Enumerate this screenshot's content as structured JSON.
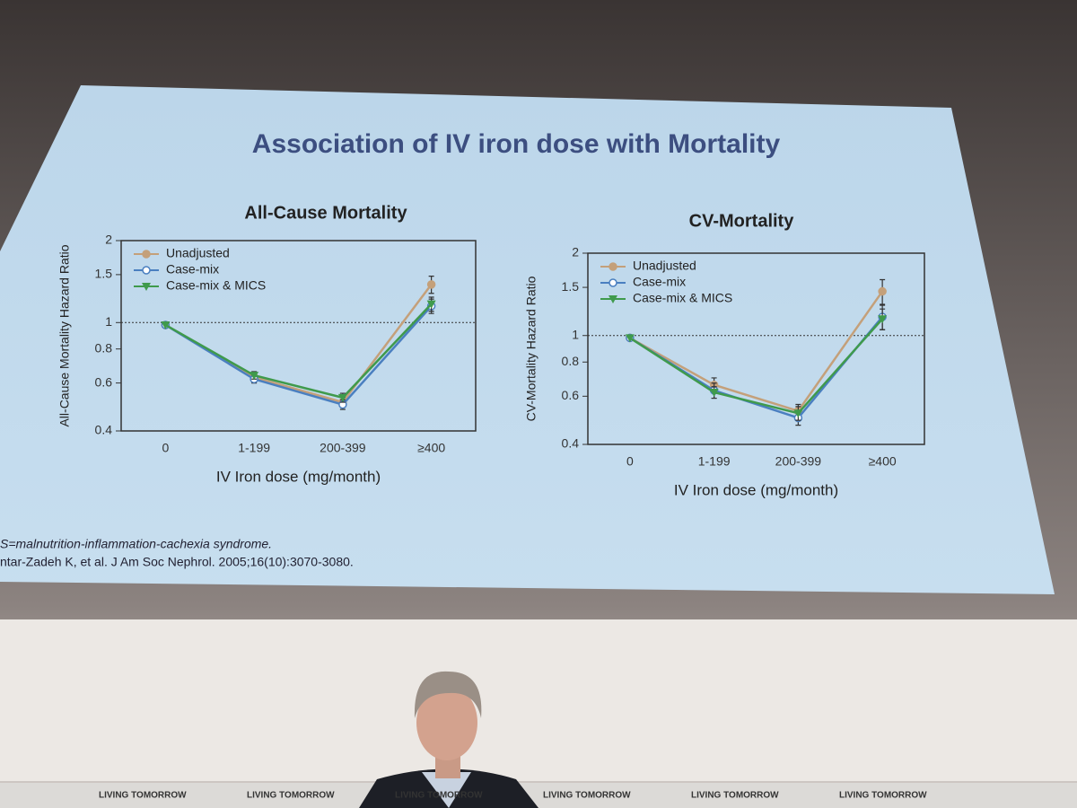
{
  "slide_title": "Association of IV iron dose with Mortality",
  "footnotes": [
    "S=malnutrition-inflammation-cachexia syndrome.",
    "ntar-Zadeh K, et al. J Am Soc Nephrol. 2005;16(10):3070-3080."
  ],
  "banners": [
    "LIVING TOMORROW",
    "LIVING TOMORROW",
    "LIVING TOMORROW",
    "LIVING TOMORROW",
    "LIVING TOMORROW",
    "LIVING TOMORROW"
  ],
  "chart_data": [
    {
      "type": "line",
      "title": "All-Cause Mortality",
      "x_label": "IV Iron dose (mg/month)",
      "y_label": "All-Cause Mortality Hazard Ratio",
      "categories": [
        "0",
        "1-199",
        "200-399",
        "≥400"
      ],
      "log_scale": true,
      "ylim": [
        0.4,
        2
      ],
      "yticks": [
        0.4,
        0.6,
        0.8,
        1,
        1.5,
        2
      ],
      "reference_line": 1,
      "legend": "upper left",
      "series": [
        {
          "name": "Unadjusted",
          "color": "#c4a07a",
          "marker": "circle",
          "values": [
            0.98,
            0.63,
            0.51,
            1.38
          ],
          "errors": [
            null,
            0.02,
            0.02,
            0.1
          ]
        },
        {
          "name": "Case-mix",
          "color": "#4a7fc0",
          "marker": "open-circle",
          "values": [
            0.98,
            0.62,
            0.5,
            1.15
          ],
          "errors": [
            null,
            0.02,
            0.02,
            0.07
          ]
        },
        {
          "name": "Case-mix & MICS",
          "color": "#3f9a4c",
          "marker": "triangle-down",
          "values": [
            0.98,
            0.64,
            0.53,
            1.17
          ],
          "errors": [
            null,
            0.02,
            0.02,
            0.07
          ]
        }
      ]
    },
    {
      "type": "line",
      "title": "CV-Mortality",
      "x_label": "IV Iron dose (mg/month)",
      "y_label": "CV-Mortality Hazard Ratio",
      "categories": [
        "0",
        "1-199",
        "200-399",
        "≥400"
      ],
      "log_scale": true,
      "ylim": [
        0.4,
        2
      ],
      "yticks": [
        0.4,
        0.6,
        0.8,
        1,
        1.5,
        2
      ],
      "reference_line": 1,
      "legend": "upper left",
      "series": [
        {
          "name": "Unadjusted",
          "color": "#c4a07a",
          "marker": "circle",
          "values": [
            0.98,
            0.66,
            0.53,
            1.45
          ],
          "errors": [
            null,
            0.04,
            0.03,
            0.15
          ]
        },
        {
          "name": "Case-mix",
          "color": "#4a7fc0",
          "marker": "open-circle",
          "values": [
            0.98,
            0.63,
            0.5,
            1.17
          ],
          "errors": [
            null,
            0.04,
            0.03,
            0.12
          ]
        },
        {
          "name": "Case-mix & MICS",
          "color": "#3f9a4c",
          "marker": "triangle-down",
          "values": [
            0.98,
            0.62,
            0.52,
            1.15
          ],
          "errors": [
            null,
            0.03,
            0.03,
            0.1
          ]
        }
      ]
    }
  ]
}
